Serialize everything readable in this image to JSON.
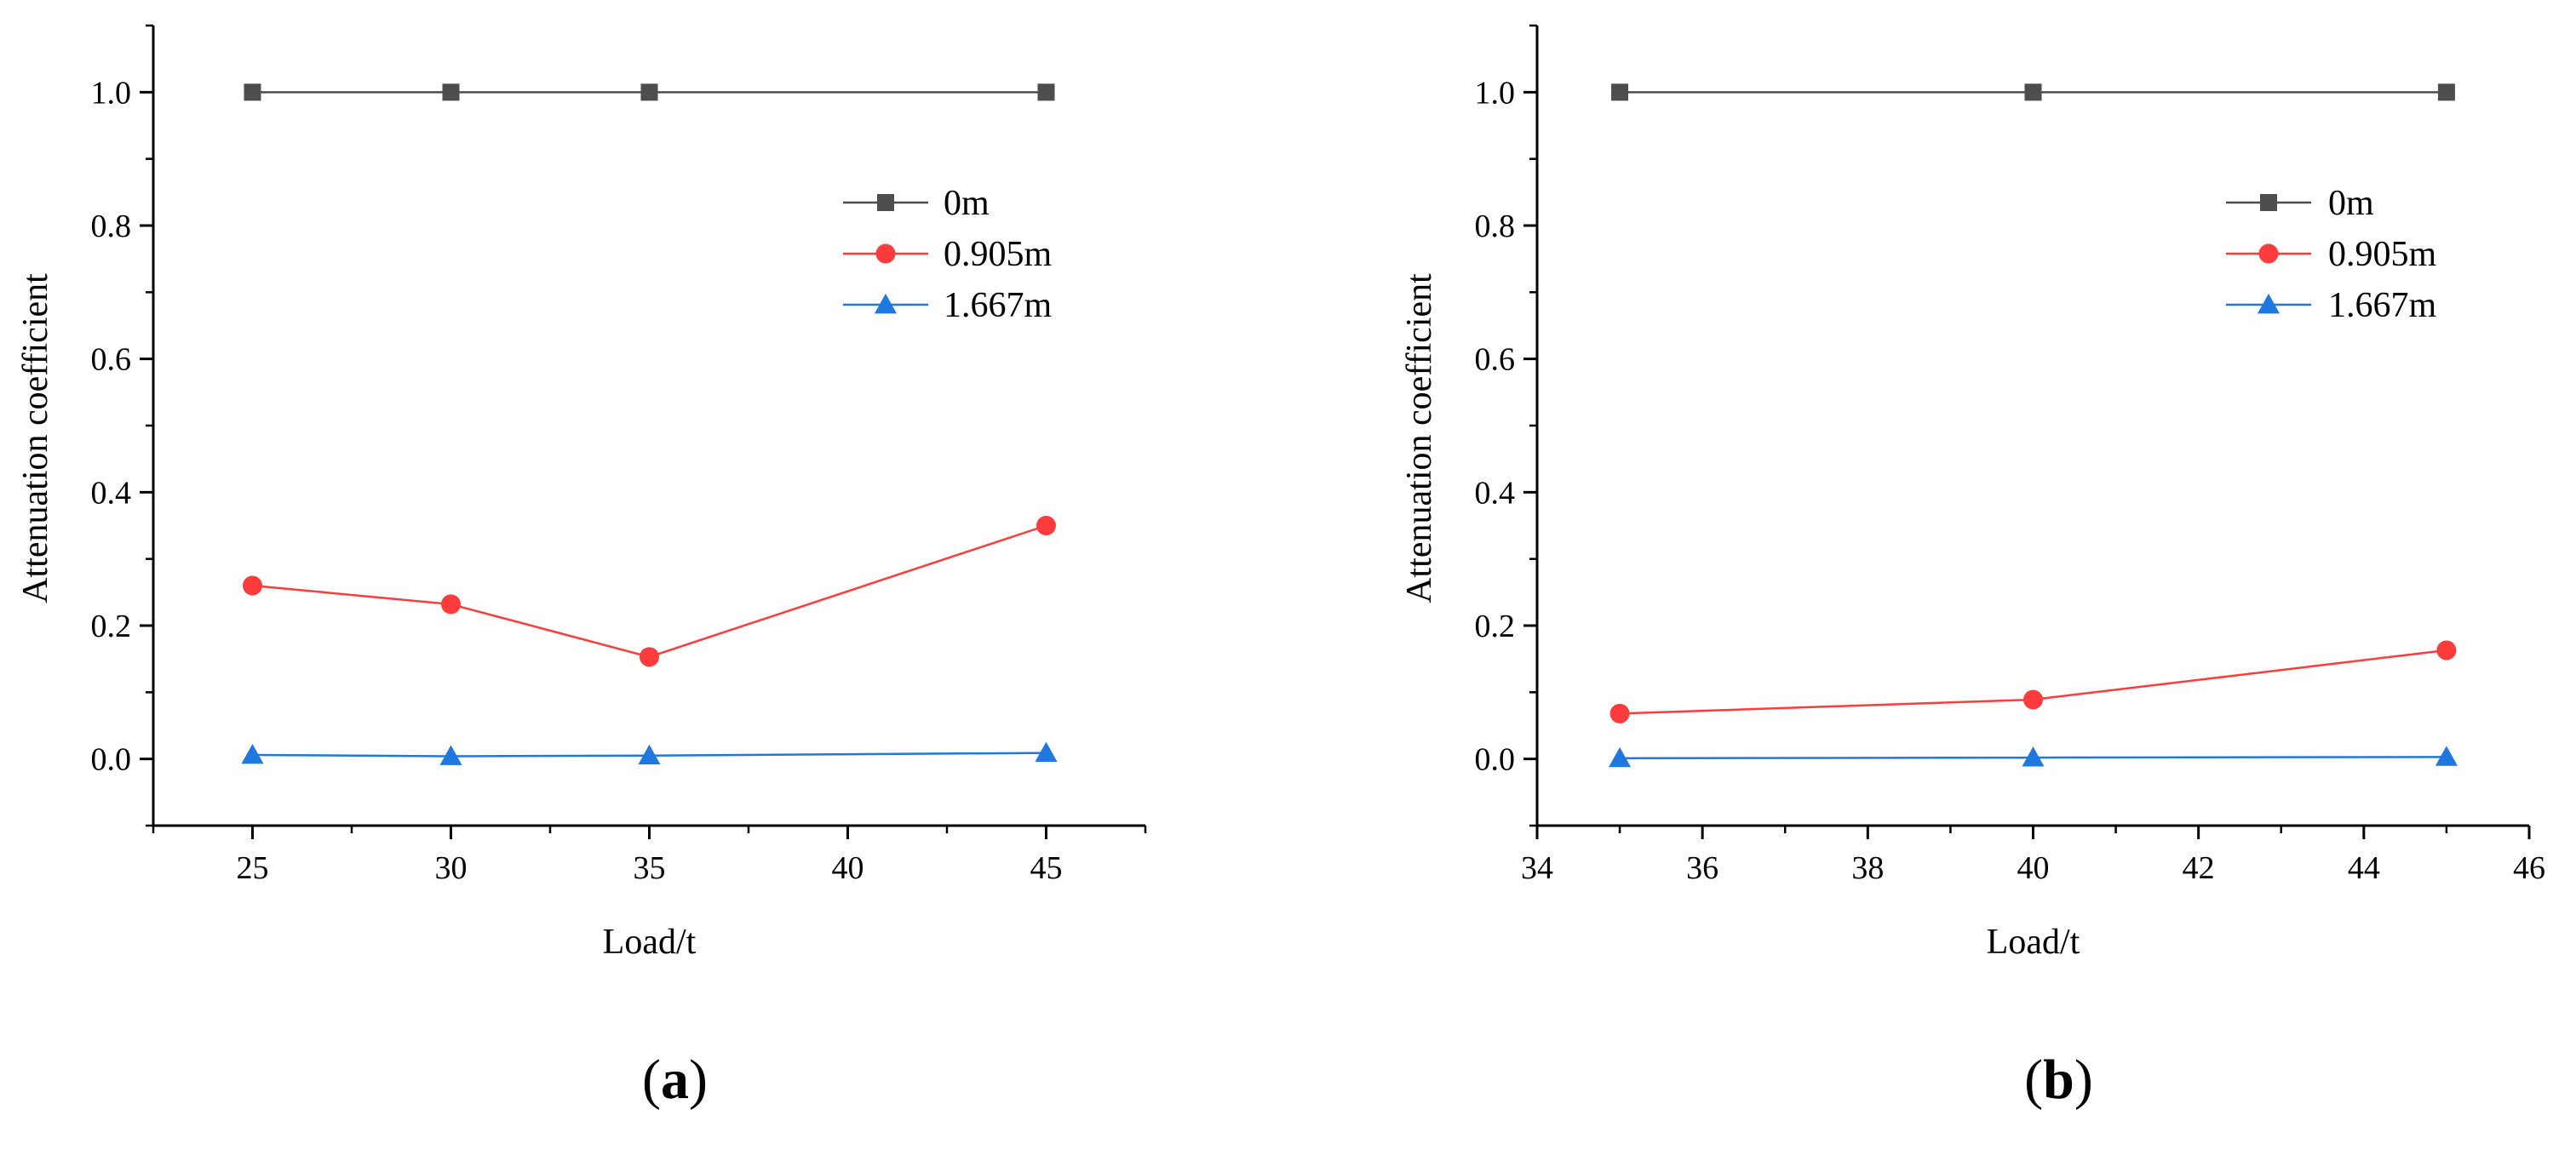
{
  "chart_data": [
    {
      "panel_label": "a",
      "type": "line",
      "xlabel": "Load/t",
      "ylabel": "Attenuation coefficient",
      "xlim": [
        22.5,
        47.5
      ],
      "ylim": [
        -0.1,
        1.1
      ],
      "x_ticks": [
        25,
        30,
        35,
        40,
        45
      ],
      "y_ticks": [
        0.0,
        0.2,
        0.4,
        0.6,
        0.8,
        1.0
      ],
      "x_tick_labels": [
        "25",
        "30",
        "35",
        "40",
        "45"
      ],
      "y_tick_labels": [
        "0.0",
        "0.2",
        "0.4",
        "0.6",
        "0.8",
        "1.0"
      ],
      "legend_position": "upper-right",
      "series": [
        {
          "name": "0m",
          "color": "#4d4d4d",
          "marker": "square",
          "x": [
            25,
            30,
            35,
            45
          ],
          "values": [
            1.0,
            1.0,
            1.0,
            1.0
          ]
        },
        {
          "name": "0.905m",
          "color": "#ff3b3b",
          "marker": "circle",
          "x": [
            25,
            30,
            35,
            45
          ],
          "values": [
            0.26,
            0.232,
            0.153,
            0.35
          ]
        },
        {
          "name": "1.667m",
          "color": "#1f77e0",
          "marker": "triangle",
          "x": [
            25,
            30,
            35,
            45
          ],
          "values": [
            0.006,
            0.004,
            0.005,
            0.009
          ]
        }
      ]
    },
    {
      "panel_label": "b",
      "type": "line",
      "xlabel": "Load/t",
      "ylabel": "Attenuation coefficient",
      "xlim": [
        34,
        46
      ],
      "ylim": [
        -0.1,
        1.1
      ],
      "x_ticks": [
        34,
        36,
        38,
        40,
        42,
        44,
        46
      ],
      "y_ticks": [
        0.0,
        0.2,
        0.4,
        0.6,
        0.8,
        1.0
      ],
      "x_tick_labels": [
        "34",
        "36",
        "38",
        "40",
        "42",
        "44",
        "46"
      ],
      "y_tick_labels": [
        "0.0",
        "0.2",
        "0.4",
        "0.6",
        "0.8",
        "1.0"
      ],
      "legend_position": "upper-right",
      "series": [
        {
          "name": "0m",
          "color": "#4d4d4d",
          "marker": "square",
          "x": [
            35,
            40,
            45
          ],
          "values": [
            1.0,
            1.0,
            1.0
          ]
        },
        {
          "name": "0.905m",
          "color": "#ff3b3b",
          "marker": "circle",
          "x": [
            35,
            40,
            45
          ],
          "values": [
            0.068,
            0.089,
            0.163
          ]
        },
        {
          "name": "1.667m",
          "color": "#1f77e0",
          "marker": "triangle",
          "x": [
            35,
            40,
            45
          ],
          "values": [
            0.001,
            0.002,
            0.003
          ]
        }
      ]
    }
  ]
}
